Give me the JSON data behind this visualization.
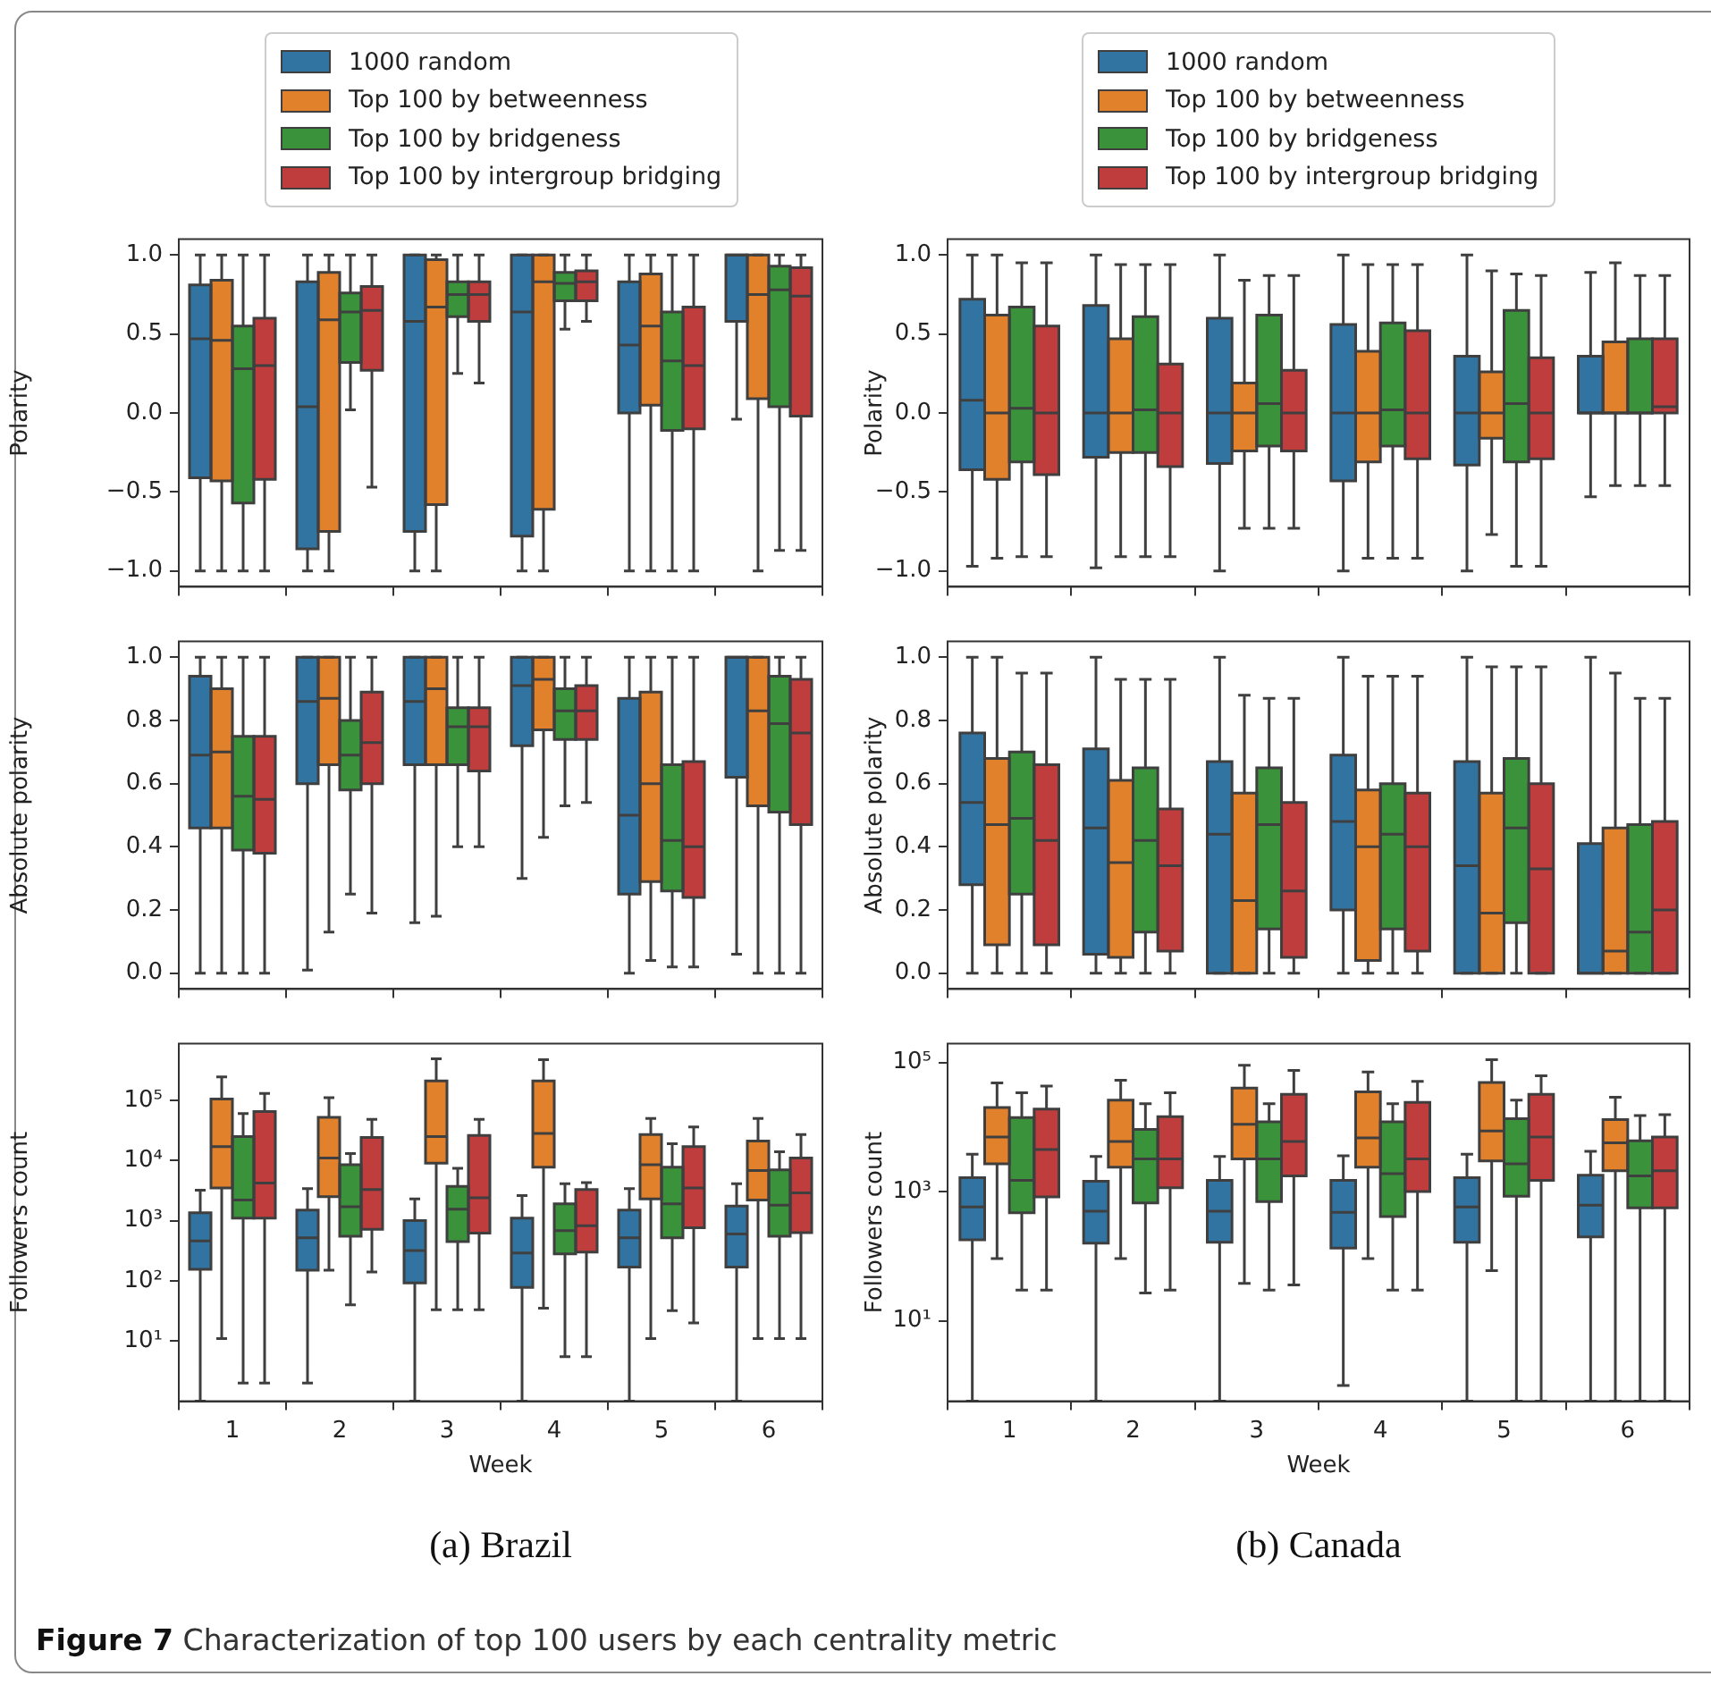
{
  "chart_data": [
    {
      "type": "box",
      "ylabel": "Polarity",
      "categories": [
        "1",
        "2",
        "3",
        "4",
        "5",
        "6"
      ],
      "ylim": [
        -1.1,
        1.1
      ],
      "yticks": [
        {
          "value": -1,
          "label": "−1.0"
        },
        {
          "value": -0.5,
          "label": "−0.5"
        },
        {
          "value": 0,
          "label": "0.0"
        },
        {
          "value": 0.5,
          "label": "0.5"
        },
        {
          "value": 1,
          "label": "1.0"
        }
      ],
      "tick_labels": "y",
      "legend": "top",
      "series": [
        {
          "name": "1000 random",
          "color": "#3274a1",
          "boxes": [
            {
              "low": -1,
              "q1": -0.41,
              "median": 0.47,
              "q3": 0.81,
              "high": 1
            },
            {
              "low": -1,
              "q1": -0.86,
              "median": 0.04,
              "q3": 0.83,
              "high": 1
            },
            {
              "low": -1,
              "q1": -0.75,
              "median": 0.58,
              "q3": 1,
              "high": 1
            },
            {
              "low": -1,
              "q1": -0.78,
              "median": 0.64,
              "q3": 1,
              "high": 1
            },
            {
              "low": -1,
              "q1": 0,
              "median": 0.43,
              "q3": 0.83,
              "high": 1
            },
            {
              "low": -0.04,
              "q1": 0.58,
              "median": 1,
              "q3": 1,
              "high": 1
            }
          ]
        },
        {
          "name": "Top 100 by betweenness",
          "color": "#e1812c",
          "boxes": [
            {
              "low": -1,
              "q1": -0.43,
              "median": 0.46,
              "q3": 0.84,
              "high": 1
            },
            {
              "low": -1,
              "q1": -0.75,
              "median": 0.59,
              "q3": 0.89,
              "high": 1
            },
            {
              "low": -1,
              "q1": -0.58,
              "median": 0.67,
              "q3": 0.97,
              "high": 1
            },
            {
              "low": -1,
              "q1": -0.61,
              "median": 0.83,
              "q3": 1,
              "high": 1
            },
            {
              "low": -1,
              "q1": 0.05,
              "median": 0.55,
              "q3": 0.88,
              "high": 1
            },
            {
              "low": -1,
              "q1": 0.09,
              "median": 0.75,
              "q3": 1,
              "high": 1
            }
          ]
        },
        {
          "name": "Top 100 by bridgeness",
          "color": "#3a923a",
          "boxes": [
            {
              "low": -1,
              "q1": -0.57,
              "median": 0.28,
              "q3": 0.55,
              "high": 1
            },
            {
              "low": 0.02,
              "q1": 0.32,
              "median": 0.64,
              "q3": 0.76,
              "high": 1
            },
            {
              "low": 0.25,
              "q1": 0.61,
              "median": 0.75,
              "q3": 0.83,
              "high": 1
            },
            {
              "low": 0.53,
              "q1": 0.71,
              "median": 0.82,
              "q3": 0.89,
              "high": 1
            },
            {
              "low": -1,
              "q1": -0.11,
              "median": 0.33,
              "q3": 0.64,
              "high": 1
            },
            {
              "low": -0.87,
              "q1": 0.04,
              "median": 0.78,
              "q3": 0.93,
              "high": 1
            }
          ]
        },
        {
          "name": "Top 100 by intergroup bridging",
          "color": "#c03d3e",
          "boxes": [
            {
              "low": -1,
              "q1": -0.42,
              "median": 0.3,
              "q3": 0.6,
              "high": 1
            },
            {
              "low": -0.47,
              "q1": 0.27,
              "median": 0.65,
              "q3": 0.8,
              "high": 1
            },
            {
              "low": 0.19,
              "q1": 0.58,
              "median": 0.75,
              "q3": 0.83,
              "high": 1
            },
            {
              "low": 0.58,
              "q1": 0.71,
              "median": 0.83,
              "q3": 0.9,
              "high": 1
            },
            {
              "low": -1,
              "q1": -0.1,
              "median": 0.3,
              "q3": 0.67,
              "high": 1
            },
            {
              "low": -0.87,
              "q1": -0.02,
              "median": 0.74,
              "q3": 0.92,
              "high": 1
            }
          ]
        }
      ]
    },
    {
      "type": "box",
      "ylabel": "Polarity",
      "categories": [
        "1",
        "2",
        "3",
        "4",
        "5",
        "6"
      ],
      "ylim": [
        -1.1,
        1.1
      ],
      "yticks": [
        {
          "value": -1,
          "label": "−1.0"
        },
        {
          "value": -0.5,
          "label": "−0.5"
        },
        {
          "value": 0,
          "label": "0.0"
        },
        {
          "value": 0.5,
          "label": "0.5"
        },
        {
          "value": 1,
          "label": "1.0"
        }
      ],
      "tick_labels": "y",
      "legend": "top",
      "series": [
        {
          "name": "1000 random",
          "color": "#3274a1",
          "boxes": [
            {
              "low": -0.97,
              "q1": -0.36,
              "median": 0.08,
              "q3": 0.72,
              "high": 1
            },
            {
              "low": -0.98,
              "q1": -0.28,
              "median": 0,
              "q3": 0.68,
              "high": 1
            },
            {
              "low": -1,
              "q1": -0.32,
              "median": 0,
              "q3": 0.6,
              "high": 1
            },
            {
              "low": -1,
              "q1": -0.43,
              "median": 0,
              "q3": 0.56,
              "high": 1
            },
            {
              "low": -1,
              "q1": -0.33,
              "median": 0,
              "q3": 0.36,
              "high": 1
            },
            {
              "low": -0.53,
              "q1": 0,
              "median": 0,
              "q3": 0.36,
              "high": 0.89
            }
          ]
        },
        {
          "name": "Top 100 by betweenness",
          "color": "#e1812c",
          "boxes": [
            {
              "low": -0.92,
              "q1": -0.42,
              "median": 0,
              "q3": 0.62,
              "high": 1
            },
            {
              "low": -0.91,
              "q1": -0.25,
              "median": 0,
              "q3": 0.47,
              "high": 0.94
            },
            {
              "low": -0.73,
              "q1": -0.24,
              "median": 0,
              "q3": 0.19,
              "high": 0.84
            },
            {
              "low": -0.92,
              "q1": -0.31,
              "median": 0,
              "q3": 0.39,
              "high": 0.94
            },
            {
              "low": -0.77,
              "q1": -0.16,
              "median": 0,
              "q3": 0.26,
              "high": 0.9
            },
            {
              "low": -0.46,
              "q1": 0,
              "median": 0,
              "q3": 0.45,
              "high": 0.95
            }
          ]
        },
        {
          "name": "Top 100 by bridgeness",
          "color": "#3a923a",
          "boxes": [
            {
              "low": -0.91,
              "q1": -0.31,
              "median": 0.03,
              "q3": 0.67,
              "high": 0.95
            },
            {
              "low": -0.91,
              "q1": -0.25,
              "median": 0.02,
              "q3": 0.61,
              "high": 0.94
            },
            {
              "low": -0.73,
              "q1": -0.21,
              "median": 0.06,
              "q3": 0.62,
              "high": 0.87
            },
            {
              "low": -0.92,
              "q1": -0.21,
              "median": 0.02,
              "q3": 0.57,
              "high": 0.94
            },
            {
              "low": -0.97,
              "q1": -0.31,
              "median": 0.06,
              "q3": 0.65,
              "high": 0.88
            },
            {
              "low": -0.46,
              "q1": 0,
              "median": 0,
              "q3": 0.47,
              "high": 0.87
            }
          ]
        },
        {
          "name": "Top 100 by intergroup bridging",
          "color": "#c03d3e",
          "boxes": [
            {
              "low": -0.91,
              "q1": -0.39,
              "median": 0,
              "q3": 0.55,
              "high": 0.95
            },
            {
              "low": -0.91,
              "q1": -0.34,
              "median": 0,
              "q3": 0.31,
              "high": 0.94
            },
            {
              "low": -0.73,
              "q1": -0.24,
              "median": 0,
              "q3": 0.27,
              "high": 0.87
            },
            {
              "low": -0.92,
              "q1": -0.29,
              "median": 0,
              "q3": 0.52,
              "high": 0.94
            },
            {
              "low": -0.97,
              "q1": -0.29,
              "median": 0,
              "q3": 0.35,
              "high": 0.87
            },
            {
              "low": -0.46,
              "q1": 0,
              "median": 0.04,
              "q3": 0.47,
              "high": 0.87
            }
          ]
        }
      ]
    },
    {
      "type": "box",
      "ylabel": "Absolute polarity",
      "categories": [
        "1",
        "2",
        "3",
        "4",
        "5",
        "6"
      ],
      "ylim": [
        -0.05,
        1.05
      ],
      "yticks": [
        {
          "value": 0,
          "label": "0.0"
        },
        {
          "value": 0.2,
          "label": "0.2"
        },
        {
          "value": 0.4,
          "label": "0.4"
        },
        {
          "value": 0.6,
          "label": "0.6"
        },
        {
          "value": 0.8,
          "label": "0.8"
        },
        {
          "value": 1,
          "label": "1.0"
        }
      ],
      "tick_labels": "y",
      "series": [
        {
          "color": "#3274a1",
          "boxes": [
            {
              "low": 0,
              "q1": 0.46,
              "median": 0.69,
              "q3": 0.94,
              "high": 1
            },
            {
              "low": 0.01,
              "q1": 0.6,
              "median": 0.86,
              "q3": 1,
              "high": 1
            },
            {
              "low": 0.16,
              "q1": 0.66,
              "median": 0.86,
              "q3": 1,
              "high": 1
            },
            {
              "low": 0.3,
              "q1": 0.72,
              "median": 0.91,
              "q3": 1,
              "high": 1
            },
            {
              "low": 0,
              "q1": 0.25,
              "median": 0.5,
              "q3": 0.87,
              "high": 1
            },
            {
              "low": 0.06,
              "q1": 0.62,
              "median": 1,
              "q3": 1,
              "high": 1
            }
          ]
        },
        {
          "color": "#e1812c",
          "boxes": [
            {
              "low": 0,
              "q1": 0.46,
              "median": 0.7,
              "q3": 0.9,
              "high": 1
            },
            {
              "low": 0.13,
              "q1": 0.66,
              "median": 0.87,
              "q3": 1,
              "high": 1
            },
            {
              "low": 0.18,
              "q1": 0.66,
              "median": 0.9,
              "q3": 1,
              "high": 1
            },
            {
              "low": 0.43,
              "q1": 0.77,
              "median": 0.93,
              "q3": 1,
              "high": 1
            },
            {
              "low": 0.04,
              "q1": 0.29,
              "median": 0.6,
              "q3": 0.89,
              "high": 1
            },
            {
              "low": 0,
              "q1": 0.53,
              "median": 0.83,
              "q3": 1,
              "high": 1
            }
          ]
        },
        {
          "color": "#3a923a",
          "boxes": [
            {
              "low": 0,
              "q1": 0.39,
              "median": 0.56,
              "q3": 0.75,
              "high": 1
            },
            {
              "low": 0.25,
              "q1": 0.58,
              "median": 0.69,
              "q3": 0.8,
              "high": 1
            },
            {
              "low": 0.4,
              "q1": 0.66,
              "median": 0.78,
              "q3": 0.84,
              "high": 1
            },
            {
              "low": 0.53,
              "q1": 0.74,
              "median": 0.83,
              "q3": 0.9,
              "high": 1
            },
            {
              "low": 0.02,
              "q1": 0.26,
              "median": 0.42,
              "q3": 0.66,
              "high": 1
            },
            {
              "low": 0,
              "q1": 0.51,
              "median": 0.79,
              "q3": 0.94,
              "high": 1
            }
          ]
        },
        {
          "color": "#c03d3e",
          "boxes": [
            {
              "low": 0,
              "q1": 0.38,
              "median": 0.55,
              "q3": 0.75,
              "high": 1
            },
            {
              "low": 0.19,
              "q1": 0.6,
              "median": 0.73,
              "q3": 0.89,
              "high": 1
            },
            {
              "low": 0.4,
              "q1": 0.64,
              "median": 0.78,
              "q3": 0.84,
              "high": 1
            },
            {
              "low": 0.54,
              "q1": 0.74,
              "median": 0.83,
              "q3": 0.91,
              "high": 1
            },
            {
              "low": 0.02,
              "q1": 0.24,
              "median": 0.4,
              "q3": 0.67,
              "high": 1
            },
            {
              "low": 0,
              "q1": 0.47,
              "median": 0.76,
              "q3": 0.93,
              "high": 1
            }
          ]
        }
      ]
    },
    {
      "type": "box",
      "ylabel": "Absolute polarity",
      "categories": [
        "1",
        "2",
        "3",
        "4",
        "5",
        "6"
      ],
      "ylim": [
        -0.05,
        1.05
      ],
      "yticks": [
        {
          "value": 0,
          "label": "0.0"
        },
        {
          "value": 0.2,
          "label": "0.2"
        },
        {
          "value": 0.4,
          "label": "0.4"
        },
        {
          "value": 0.6,
          "label": "0.6"
        },
        {
          "value": 0.8,
          "label": "0.8"
        },
        {
          "value": 1,
          "label": "1.0"
        }
      ],
      "tick_labels": "y",
      "series": [
        {
          "color": "#3274a1",
          "boxes": [
            {
              "low": 0,
              "q1": 0.28,
              "median": 0.54,
              "q3": 0.76,
              "high": 1
            },
            {
              "low": 0,
              "q1": 0.06,
              "median": 0.46,
              "q3": 0.71,
              "high": 1
            },
            {
              "low": 0,
              "q1": 0,
              "median": 0.44,
              "q3": 0.67,
              "high": 1
            },
            {
              "low": 0,
              "q1": 0.2,
              "median": 0.48,
              "q3": 0.69,
              "high": 1
            },
            {
              "low": 0,
              "q1": 0,
              "median": 0.34,
              "q3": 0.67,
              "high": 1
            },
            {
              "low": 0,
              "q1": 0,
              "median": 0,
              "q3": 0.41,
              "high": 1
            }
          ]
        },
        {
          "color": "#e1812c",
          "boxes": [
            {
              "low": 0,
              "q1": 0.09,
              "median": 0.47,
              "q3": 0.68,
              "high": 1
            },
            {
              "low": 0,
              "q1": 0.05,
              "median": 0.35,
              "q3": 0.61,
              "high": 0.93
            },
            {
              "low": 0,
              "q1": 0,
              "median": 0.23,
              "q3": 0.57,
              "high": 0.88
            },
            {
              "low": 0,
              "q1": 0.04,
              "median": 0.4,
              "q3": 0.58,
              "high": 0.94
            },
            {
              "low": 0,
              "q1": 0,
              "median": 0.19,
              "q3": 0.57,
              "high": 0.97
            },
            {
              "low": 0,
              "q1": 0,
              "median": 0.07,
              "q3": 0.46,
              "high": 0.95
            }
          ]
        },
        {
          "color": "#3a923a",
          "boxes": [
            {
              "low": 0,
              "q1": 0.25,
              "median": 0.49,
              "q3": 0.7,
              "high": 0.95
            },
            {
              "low": 0,
              "q1": 0.13,
              "median": 0.42,
              "q3": 0.65,
              "high": 0.93
            },
            {
              "low": 0,
              "q1": 0.14,
              "median": 0.47,
              "q3": 0.65,
              "high": 0.87
            },
            {
              "low": 0,
              "q1": 0.14,
              "median": 0.44,
              "q3": 0.6,
              "high": 0.94
            },
            {
              "low": 0,
              "q1": 0.16,
              "median": 0.46,
              "q3": 0.68,
              "high": 0.97
            },
            {
              "low": 0,
              "q1": 0,
              "median": 0.13,
              "q3": 0.47,
              "high": 0.87
            }
          ]
        },
        {
          "color": "#c03d3e",
          "boxes": [
            {
              "low": 0,
              "q1": 0.09,
              "median": 0.42,
              "q3": 0.66,
              "high": 0.95
            },
            {
              "low": 0,
              "q1": 0.07,
              "median": 0.34,
              "q3": 0.52,
              "high": 0.93
            },
            {
              "low": 0,
              "q1": 0.05,
              "median": 0.26,
              "q3": 0.54,
              "high": 0.87
            },
            {
              "low": 0,
              "q1": 0.07,
              "median": 0.4,
              "q3": 0.57,
              "high": 0.94
            },
            {
              "low": 0,
              "q1": 0,
              "median": 0.33,
              "q3": 0.6,
              "high": 0.97
            },
            {
              "low": 0,
              "q1": 0,
              "median": 0.2,
              "q3": 0.48,
              "high": 0.87
            }
          ]
        }
      ]
    },
    {
      "type": "box",
      "ylabel": "Followers count",
      "xlabel": "Week",
      "categories": [
        "1",
        "2",
        "3",
        "4",
        "5",
        "6"
      ],
      "log": "y",
      "ylim": [
        1,
        870000
      ],
      "yticks": [
        {
          "value": 10,
          "label": "10¹"
        },
        {
          "value": 100,
          "label": "10²"
        },
        {
          "value": 1000,
          "label": "10³"
        },
        {
          "value": 10000,
          "label": "10⁴"
        },
        {
          "value": 100000,
          "label": "10⁵"
        }
      ],
      "annotations": [
        "(a) Brazil"
      ],
      "series": [
        {
          "color": "#3274a1",
          "boxes": [
            {
              "low": 1,
              "q1": 155,
              "median": 460,
              "q3": 1350,
              "high": 3200
            },
            {
              "low": 2,
              "q1": 150,
              "median": 520,
              "q3": 1500,
              "high": 3400
            },
            {
              "low": 1,
              "q1": 92,
              "median": 320,
              "q3": 1000,
              "high": 2300
            },
            {
              "low": 1,
              "q1": 78,
              "median": 290,
              "q3": 1100,
              "high": 2600
            },
            {
              "low": 1,
              "q1": 170,
              "median": 520,
              "q3": 1500,
              "high": 3400
            },
            {
              "low": 1,
              "q1": 170,
              "median": 600,
              "q3": 1750,
              "high": 4100
            }
          ]
        },
        {
          "color": "#e1812c",
          "boxes": [
            {
              "low": 11,
              "q1": 3500,
              "median": 17000,
              "q3": 105000,
              "high": 245000
            },
            {
              "low": 150,
              "q1": 2500,
              "median": 11000,
              "q3": 52000,
              "high": 110000
            },
            {
              "low": 33,
              "q1": 9000,
              "median": 25000,
              "q3": 210000,
              "high": 490000
            },
            {
              "low": 35,
              "q1": 7700,
              "median": 28000,
              "q3": 210000,
              "high": 470000
            },
            {
              "low": 11,
              "q1": 2300,
              "median": 8500,
              "q3": 27000,
              "high": 50000
            },
            {
              "low": 11,
              "q1": 2200,
              "median": 6800,
              "q3": 21000,
              "high": 50000
            }
          ]
        },
        {
          "color": "#3a923a",
          "boxes": [
            {
              "low": 2,
              "q1": 1100,
              "median": 2200,
              "q3": 25000,
              "high": 60000
            },
            {
              "low": 40,
              "q1": 550,
              "median": 1700,
              "q3": 8500,
              "high": 13000
            },
            {
              "low": 33,
              "q1": 450,
              "median": 1550,
              "q3": 3700,
              "high": 7400
            },
            {
              "low": 5.5,
              "q1": 280,
              "median": 680,
              "q3": 1900,
              "high": 4100
            },
            {
              "low": 32,
              "q1": 520,
              "median": 1900,
              "q3": 7700,
              "high": 19000
            },
            {
              "low": 11,
              "q1": 550,
              "median": 1800,
              "q3": 7000,
              "high": 14000
            }
          ]
        },
        {
          "color": "#c03d3e",
          "boxes": [
            {
              "low": 2,
              "q1": 1100,
              "median": 4200,
              "q3": 65000,
              "high": 130000
            },
            {
              "low": 140,
              "q1": 720,
              "median": 3300,
              "q3": 24000,
              "high": 48000
            },
            {
              "low": 33,
              "q1": 620,
              "median": 2400,
              "q3": 26000,
              "high": 48000
            },
            {
              "low": 5.5,
              "q1": 300,
              "median": 820,
              "q3": 3300,
              "high": 4300
            },
            {
              "low": 20,
              "q1": 760,
              "median": 3500,
              "q3": 17000,
              "high": 36000
            },
            {
              "low": 11,
              "q1": 630,
              "median": 2900,
              "q3": 11000,
              "high": 27000
            }
          ]
        }
      ]
    },
    {
      "type": "box",
      "ylabel": "Followers count",
      "xlabel": "Week",
      "categories": [
        "1",
        "2",
        "3",
        "4",
        "5",
        "6"
      ],
      "log": "y",
      "ylim": [
        0.57,
        195000
      ],
      "yticks": [
        {
          "value": 10,
          "label": "10¹"
        },
        {
          "value": 1000,
          "label": "10³"
        },
        {
          "value": 100000,
          "label": "10⁵"
        }
      ],
      "annotations": [
        "(b) Canada",
        "Figure 7  Characterization of top 100 users by each centrality metric"
      ],
      "series": [
        {
          "color": "#3274a1",
          "boxes": [
            {
              "low": 0.57,
              "q1": 180,
              "median": 580,
              "q3": 1650,
              "high": 3800
            },
            {
              "low": 0.57,
              "q1": 160,
              "median": 500,
              "q3": 1450,
              "high": 3500
            },
            {
              "low": 0.57,
              "q1": 165,
              "median": 500,
              "q3": 1500,
              "high": 3500
            },
            {
              "low": 1,
              "q1": 134,
              "median": 480,
              "q3": 1500,
              "high": 3600
            },
            {
              "low": 0.57,
              "q1": 165,
              "median": 580,
              "q3": 1650,
              "high": 3800
            },
            {
              "low": 0.57,
              "q1": 200,
              "median": 620,
              "q3": 1800,
              "high": 4200
            }
          ]
        },
        {
          "color": "#e1812c",
          "boxes": [
            {
              "low": 92,
              "q1": 2700,
              "median": 7000,
              "q3": 20000,
              "high": 48000
            },
            {
              "low": 92,
              "q1": 2400,
              "median": 6000,
              "q3": 26000,
              "high": 53000
            },
            {
              "low": 38,
              "q1": 3200,
              "median": 11000,
              "q3": 40000,
              "high": 90000
            },
            {
              "low": 92,
              "q1": 2400,
              "median": 6800,
              "q3": 35000,
              "high": 71000
            },
            {
              "low": 60,
              "q1": 3000,
              "median": 8700,
              "q3": 49000,
              "high": 110000
            },
            {
              "low": 0.57,
              "q1": 2100,
              "median": 5700,
              "q3": 13000,
              "high": 29000
            }
          ]
        },
        {
          "color": "#3a923a",
          "boxes": [
            {
              "low": 30,
              "q1": 470,
              "median": 1500,
              "q3": 14000,
              "high": 34000
            },
            {
              "low": 27,
              "q1": 670,
              "median": 3200,
              "q3": 9200,
              "high": 23000
            },
            {
              "low": 30,
              "q1": 700,
              "median": 3200,
              "q3": 12000,
              "high": 23000
            },
            {
              "low": 30,
              "q1": 410,
              "median": 1900,
              "q3": 12000,
              "high": 23000
            },
            {
              "low": 0.57,
              "q1": 850,
              "median": 2700,
              "q3": 13500,
              "high": 26000
            },
            {
              "low": 0.57,
              "q1": 560,
              "median": 1750,
              "q3": 6100,
              "high": 15000
            }
          ]
        },
        {
          "color": "#c03d3e",
          "boxes": [
            {
              "low": 30,
              "q1": 830,
              "median": 4500,
              "q3": 19000,
              "high": 43000
            },
            {
              "low": 30,
              "q1": 1150,
              "median": 3200,
              "q3": 14500,
              "high": 34000
            },
            {
              "low": 36,
              "q1": 1750,
              "median": 6000,
              "q3": 32000,
              "high": 75000
            },
            {
              "low": 30,
              "q1": 1000,
              "median": 3200,
              "q3": 24000,
              "high": 51000
            },
            {
              "low": 0.57,
              "q1": 1500,
              "median": 7000,
              "q3": 32000,
              "high": 62000
            },
            {
              "low": 0.57,
              "q1": 560,
              "median": 2100,
              "q3": 7000,
              "high": 15500
            }
          ]
        }
      ]
    }
  ]
}
